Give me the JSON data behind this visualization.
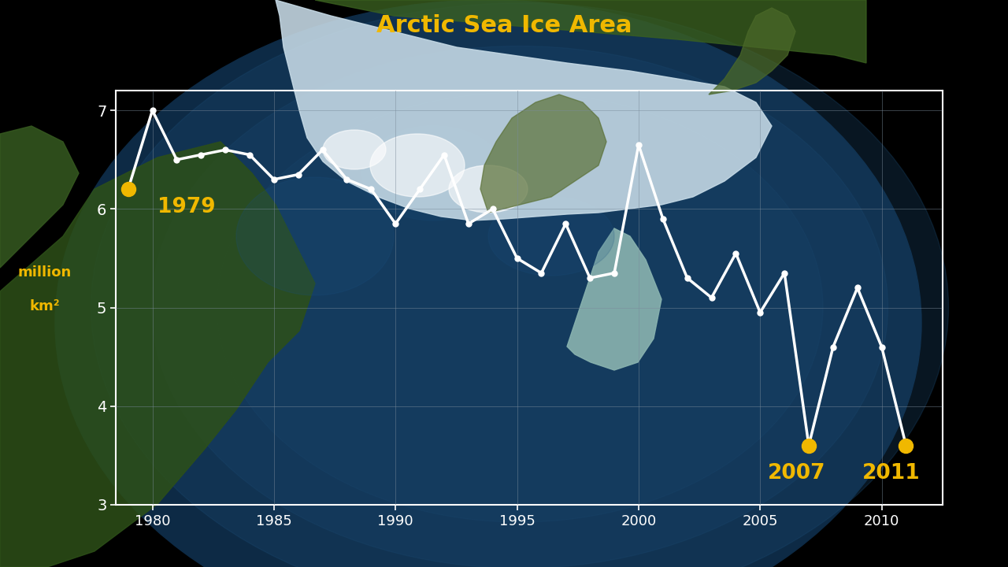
{
  "title": "Arctic Sea Ice Area",
  "years": [
    1979,
    1980,
    1981,
    1982,
    1983,
    1984,
    1985,
    1986,
    1987,
    1988,
    1989,
    1990,
    1991,
    1992,
    1993,
    1994,
    1995,
    1996,
    1997,
    1998,
    1999,
    2000,
    2001,
    2002,
    2003,
    2004,
    2005,
    2006,
    2007,
    2008,
    2009,
    2010,
    2011
  ],
  "values": [
    6.2,
    7.0,
    6.5,
    6.55,
    6.6,
    6.55,
    6.3,
    6.35,
    6.6,
    6.3,
    6.2,
    5.85,
    6.2,
    6.55,
    5.85,
    6.0,
    5.5,
    5.35,
    5.85,
    5.3,
    5.35,
    6.65,
    5.9,
    5.3,
    5.1,
    5.55,
    4.95,
    5.35,
    3.6,
    4.6,
    5.2,
    4.6,
    3.6
  ],
  "highlight_years": [
    1979,
    2007,
    2011
  ],
  "highlight_indices": [
    0,
    28,
    32
  ],
  "xlim": [
    1978.5,
    2012.5
  ],
  "ylim": [
    3.0,
    7.2
  ],
  "yticks": [
    3,
    4,
    5,
    6,
    7
  ],
  "xticks": [
    1980,
    1985,
    1990,
    1995,
    2000,
    2005,
    2010
  ],
  "line_color": "#ffffff",
  "highlight_color": "#f0b800",
  "title_color": "#f0b800",
  "ylabel_color": "#f0b800",
  "tick_color": "#ffffff",
  "background_color": "#000000",
  "globe_ocean_color": "#1a3a5c",
  "globe_land_color_1": "#2d5a1b",
  "globe_land_color_2": "#4a7a2a",
  "ice_color": "#d8e8f0",
  "chart_bg_alpha": 0.0,
  "anno_1979": "1979",
  "anno_2007": "2007",
  "anno_2011": "2011",
  "anno_ylabel_1": "million",
  "anno_ylabel_2": "km²"
}
